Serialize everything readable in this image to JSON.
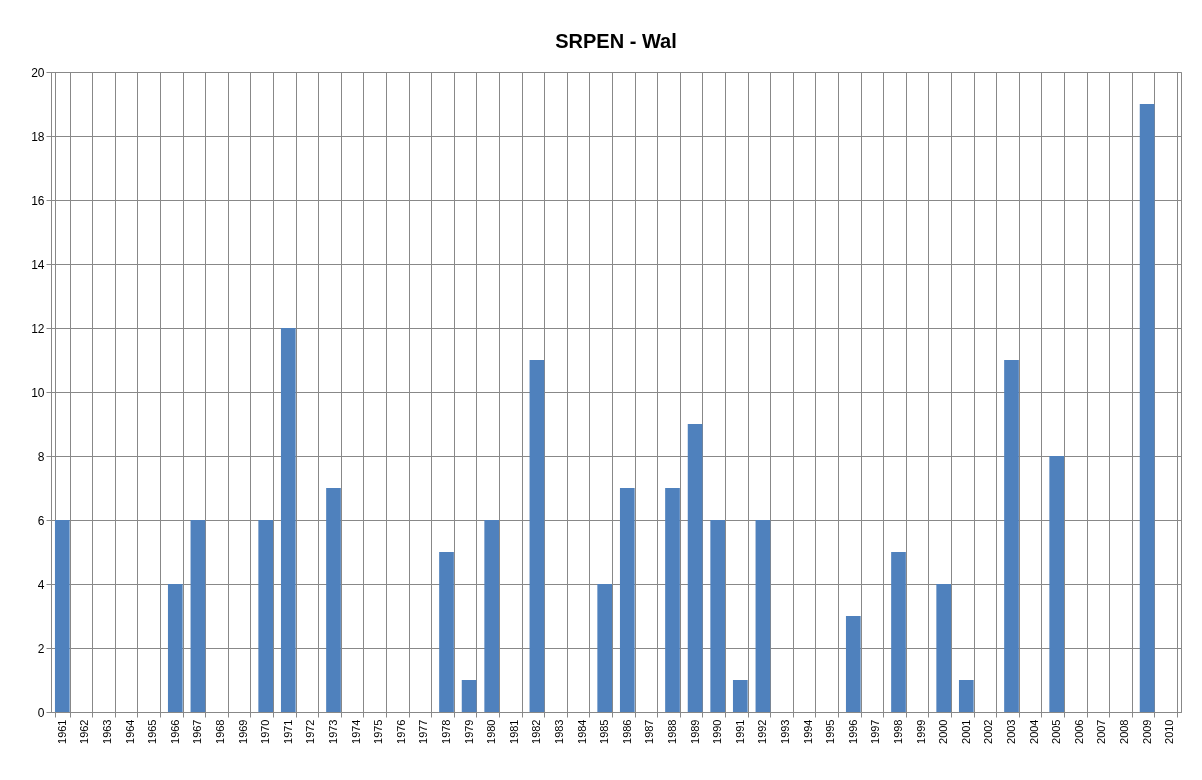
{
  "chart_data": {
    "type": "bar",
    "title": "SRPEN - Wal",
    "categories": [
      "1961",
      "1962",
      "1963",
      "1964",
      "1965",
      "1966",
      "1967",
      "1968",
      "1969",
      "1970",
      "1971",
      "1972",
      "1973",
      "1974",
      "1975",
      "1976",
      "1977",
      "1978",
      "1979",
      "1980",
      "1981",
      "1982",
      "1983",
      "1984",
      "1985",
      "1986",
      "1987",
      "1988",
      "1989",
      "1990",
      "1991",
      "1992",
      "1993",
      "1994",
      "1995",
      "1996",
      "1997",
      "1998",
      "1999",
      "2000",
      "2001",
      "2002",
      "2003",
      "2004",
      "2005",
      "2006",
      "2007",
      "2008",
      "2009",
      "2010"
    ],
    "values": [
      6,
      0,
      0,
      0,
      0,
      4,
      6,
      0,
      0,
      6,
      12,
      0,
      7,
      0,
      0,
      0,
      0,
      5,
      1,
      6,
      0,
      11,
      0,
      0,
      4,
      7,
      0,
      7,
      9,
      6,
      1,
      6,
      0,
      0,
      0,
      3,
      0,
      5,
      0,
      4,
      1,
      0,
      11,
      0,
      8,
      0,
      0,
      0,
      19,
      0
    ],
    "color": "#4f81bd",
    "ylim": [
      0,
      20
    ],
    "yticks": [
      0,
      2,
      4,
      6,
      8,
      10,
      12,
      14,
      16,
      18,
      20
    ],
    "grid": true
  }
}
